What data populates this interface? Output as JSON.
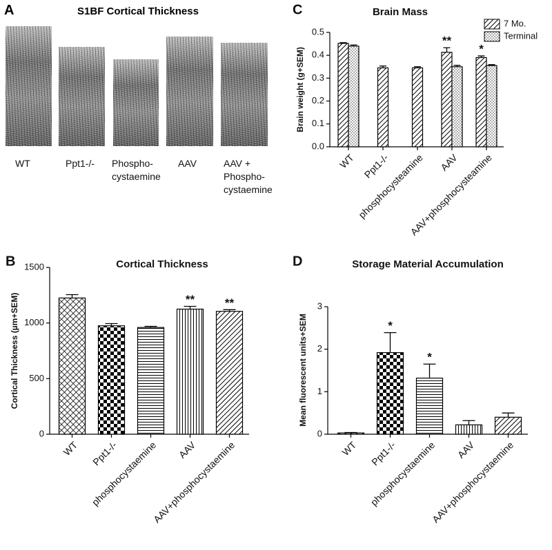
{
  "panel_a": {
    "panel": "A",
    "title": "S1BF Cortical Thickness",
    "labels": [
      "WT",
      "Ppt1-/-",
      "Phospho-\ncystaemine",
      "AAV",
      "AAV +\nPhospho-\ncystaemine"
    ]
  },
  "chart_data": [
    {
      "type": "bar",
      "panel": "B",
      "title": "Cortical Thickness",
      "y_label": "Cortical Thickness (µm+SEM)",
      "categories": [
        "WT",
        "Ppt1-/-",
        "phosphocystaemine",
        "AAV",
        "AAV+phosphocystaemine"
      ],
      "values": [
        1225,
        975,
        960,
        1125,
        1105
      ],
      "errors": [
        30,
        20,
        10,
        25,
        15
      ],
      "annotations": [
        null,
        null,
        null,
        "**",
        "**"
      ],
      "patterns": [
        "crosshatch",
        "checker",
        "horizontal",
        "vertical",
        "diagonal"
      ],
      "ylim": [
        0,
        1500
      ],
      "yticks": [
        0,
        500,
        1000,
        1500
      ]
    },
    {
      "type": "bar",
      "panel": "C",
      "title": "Brain Mass",
      "y_label": "Brain weight (g+SEM)",
      "categories": [
        "WT",
        "Ppt1-/-",
        "phosphocysteamine",
        "AAV",
        "AAV+phosphocysteamine"
      ],
      "series": [
        {
          "name": "7 Mo.",
          "pattern": "diagonal",
          "values": [
            0.452,
            0.345,
            0.345,
            0.413,
            0.39
          ],
          "errors": [
            0.003,
            0.008,
            0.005,
            0.02,
            0.007
          ],
          "annotations": [
            null,
            null,
            null,
            "**",
            "*"
          ]
        },
        {
          "name": "Terminal",
          "pattern": "dots",
          "values": [
            0.44,
            null,
            null,
            0.35,
            0.355
          ],
          "errors": [
            0.005,
            null,
            null,
            0.006,
            0.004
          ],
          "annotations": [
            null,
            null,
            null,
            null,
            null
          ]
        }
      ],
      "legend": "upper right",
      "ylim": [
        0,
        0.5
      ],
      "yticks": [
        {
          "value": 0,
          "label": "0.0"
        },
        0.1,
        0.2,
        0.3,
        0.4,
        0.5
      ]
    },
    {
      "type": "bar",
      "panel": "D",
      "title": "Storage Material Accumulation",
      "y_label": "Mean fluorescent units+SEM",
      "categories": [
        "WT",
        "Ppt1-/-",
        "phosphocystaemine",
        "AAV",
        "AAV+phosphocystaemine"
      ],
      "values": [
        0.03,
        1.92,
        1.32,
        0.22,
        0.4
      ],
      "errors": [
        0.01,
        0.47,
        0.33,
        0.1,
        0.1
      ],
      "annotations": [
        null,
        "*",
        "*",
        null,
        null
      ],
      "patterns": [
        "crosshatch",
        "checker",
        "horizontal",
        "vertical",
        "diagonal"
      ],
      "ylim": [
        0,
        3
      ],
      "yticks": [
        0,
        1,
        2,
        3
      ]
    }
  ]
}
